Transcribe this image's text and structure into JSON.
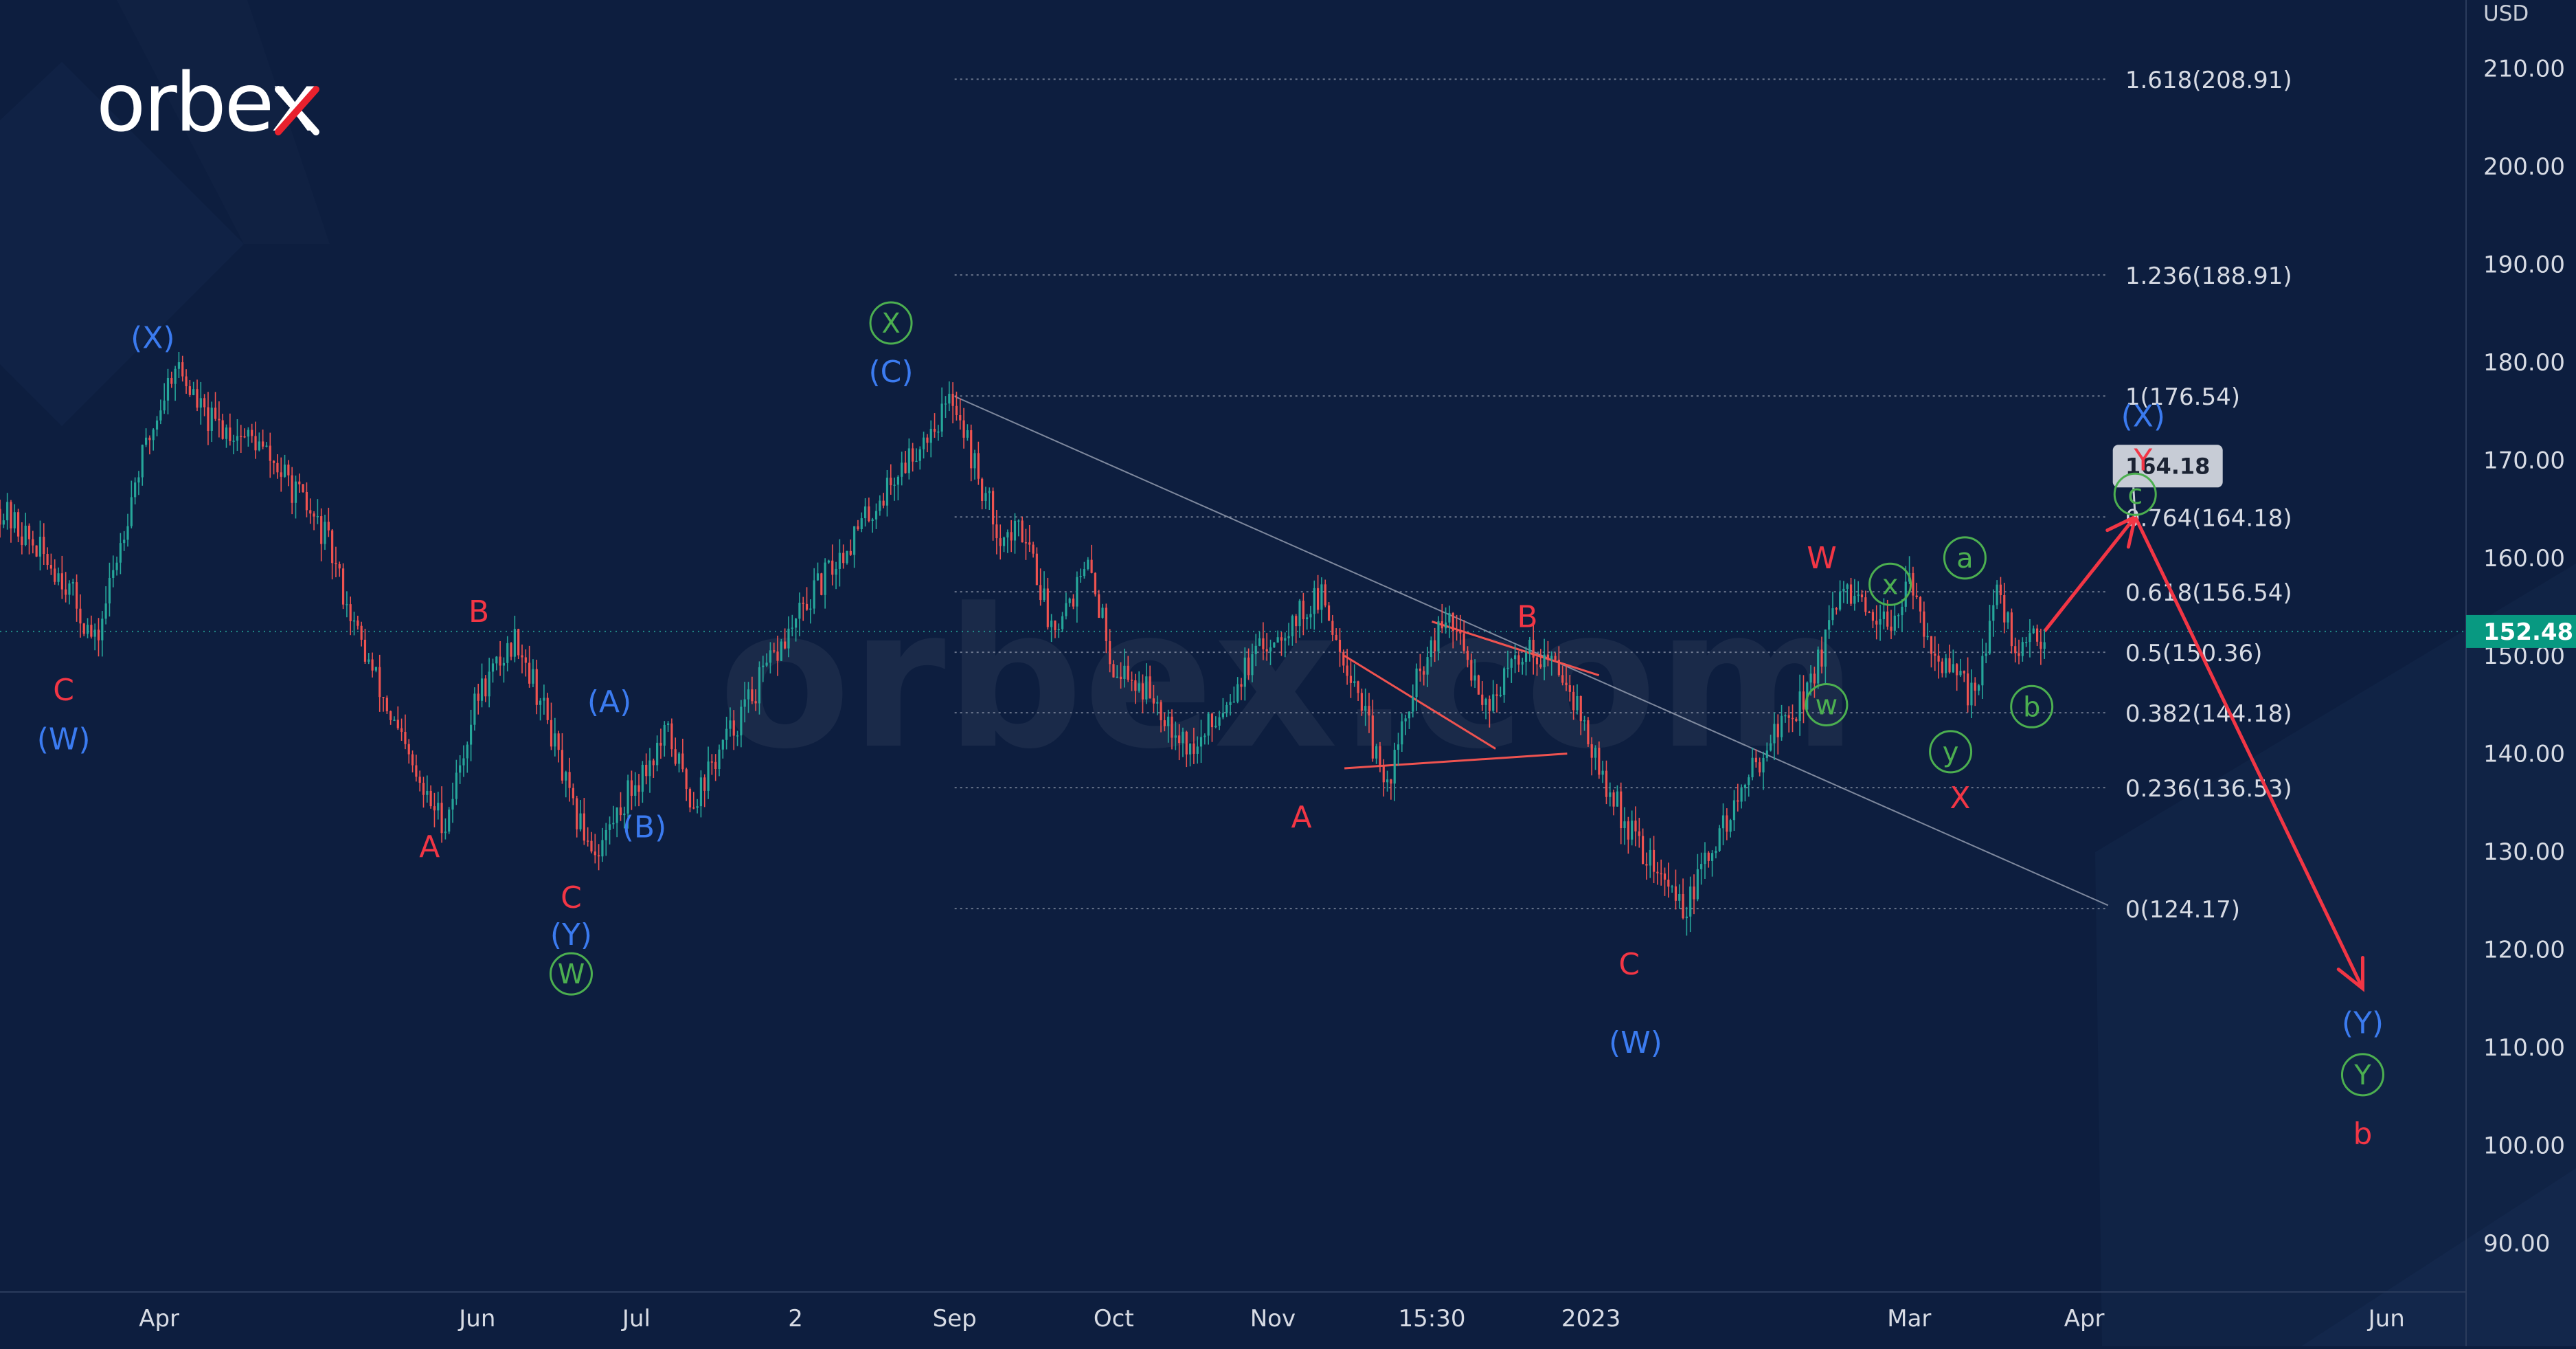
{
  "logo": {
    "text": "orbex",
    "watermark": "orbex.com"
  },
  "colors": {
    "background": "#0d1e3f",
    "up_candle": "#26a69a",
    "down_candle": "#ef5350",
    "red_label": "#f23645",
    "blue_label": "#3b7bf0",
    "green_label": "#4caf50",
    "fib_line": "#8a93a6",
    "last_price_bg": "#089981"
  },
  "chart_data": {
    "type": "candlestick",
    "instrument_unit": "USD",
    "y_axis": {
      "unit": "USD",
      "ticks": [
        90,
        100,
        110,
        120,
        130,
        140,
        150,
        160,
        170,
        180,
        190,
        200,
        210
      ],
      "tick_labels": [
        "90.00",
        "100.00",
        "110.00",
        "120.00",
        "130.00",
        "140.00",
        "150.00",
        "160.00",
        "170.00",
        "180.00",
        "190.00",
        "200.00",
        "210.00"
      ],
      "range": [
        85,
        217
      ]
    },
    "x_axis": {
      "tick_labels": [
        "Apr",
        "Jun",
        "Jul",
        "2",
        "Sep",
        "Oct",
        "Nov",
        "15:30",
        "2023",
        "Mar",
        "Apr",
        "Jun"
      ],
      "tick_positions": [
        0.5,
        2.5,
        3.5,
        4.5,
        5.5,
        6.5,
        7.5,
        8.5,
        9.5,
        11.5,
        12.6,
        14.5
      ],
      "range": [
        -0.5,
        15
      ]
    },
    "price_path": [
      [
        -0.5,
        165
      ],
      [
        -0.1,
        158
      ],
      [
        0.1,
        151
      ],
      [
        0.35,
        168
      ],
      [
        0.6,
        180
      ],
      [
        0.8,
        174
      ],
      [
        1.1,
        172
      ],
      [
        1.3,
        168
      ],
      [
        1.55,
        162
      ],
      [
        1.75,
        152
      ],
      [
        2.0,
        142
      ],
      [
        2.15,
        136
      ],
      [
        2.3,
        133
      ],
      [
        2.5,
        146
      ],
      [
        2.75,
        152
      ],
      [
        2.95,
        143
      ],
      [
        3.1,
        134
      ],
      [
        3.25,
        130
      ],
      [
        3.45,
        136
      ],
      [
        3.7,
        142
      ],
      [
        3.85,
        135
      ],
      [
        4.05,
        141
      ],
      [
        4.3,
        148
      ],
      [
        4.6,
        156
      ],
      [
        4.9,
        163
      ],
      [
        5.2,
        170
      ],
      [
        5.5,
        176.5
      ],
      [
        5.65,
        168
      ],
      [
        5.8,
        162
      ],
      [
        5.95,
        163
      ],
      [
        6.1,
        153
      ],
      [
        6.35,
        159
      ],
      [
        6.5,
        149
      ],
      [
        6.75,
        146
      ],
      [
        7.0,
        140
      ],
      [
        7.3,
        148
      ],
      [
        7.5,
        152
      ],
      [
        7.8,
        156
      ],
      [
        8.05,
        146
      ],
      [
        8.2,
        136
      ],
      [
        8.4,
        147
      ],
      [
        8.6,
        154
      ],
      [
        8.85,
        145
      ],
      [
        9.1,
        151
      ],
      [
        9.35,
        148
      ],
      [
        9.55,
        138
      ],
      [
        9.75,
        132
      ],
      [
        9.95,
        127
      ],
      [
        10.1,
        124.2
      ],
      [
        10.25,
        130
      ],
      [
        10.45,
        136
      ],
      [
        10.6,
        141
      ],
      [
        10.85,
        146
      ],
      [
        11.1,
        157
      ],
      [
        11.3,
        152
      ],
      [
        11.5,
        157
      ],
      [
        11.7,
        149
      ],
      [
        11.9,
        146
      ],
      [
        12.05,
        156
      ],
      [
        12.2,
        150
      ],
      [
        12.35,
        152.5
      ]
    ],
    "last_price": 152.48,
    "last_price_label": "152.48",
    "fib_levels": [
      {
        "ratio": 1.618,
        "price": 208.91,
        "label": "1.618(208.91)"
      },
      {
        "ratio": 1.236,
        "price": 188.91,
        "label": "1.236(188.91)"
      },
      {
        "ratio": 1,
        "price": 176.54,
        "label": "1(176.54)"
      },
      {
        "ratio": 0.764,
        "price": 164.18,
        "label": "0.764(164.18)"
      },
      {
        "ratio": 0.618,
        "price": 156.54,
        "label": "0.618(156.54)"
      },
      {
        "ratio": 0.5,
        "price": 150.36,
        "label": "0.5(150.36)"
      },
      {
        "ratio": 0.382,
        "price": 144.18,
        "label": "0.382(144.18)"
      },
      {
        "ratio": 0.236,
        "price": 136.53,
        "label": "0.236(136.53)"
      },
      {
        "ratio": 0,
        "price": 124.17,
        "label": "0(124.17)"
      }
    ],
    "fib_x_range": [
      5.5,
      12.75
    ],
    "target_callout": {
      "x": 12.65,
      "price": 164.18,
      "label": "164.18"
    },
    "trendline": {
      "from": [
        5.5,
        176.5
      ],
      "to": [
        12.75,
        124.5
      ]
    },
    "triangle": [
      {
        "from": [
          7.95,
          150
        ],
        "to": [
          8.9,
          140.5
        ]
      },
      {
        "from": [
          8.5,
          153.5
        ],
        "to": [
          9.55,
          148
        ]
      },
      {
        "from": [
          7.95,
          138.5
        ],
        "to": [
          9.35,
          140
        ]
      }
    ],
    "forecast_path": [
      [
        12.35,
        152.5
      ],
      [
        12.92,
        164.2
      ],
      [
        14.35,
        116
      ]
    ],
    "wave_labels": [
      {
        "text": "C",
        "x": -0.1,
        "price": 146.5,
        "color": "red",
        "style": "plain"
      },
      {
        "text": "(W)",
        "x": -0.1,
        "price": 141.5,
        "color": "blue",
        "style": "plain"
      },
      {
        "text": "(X)",
        "x": 0.46,
        "price": 182.5,
        "color": "blue",
        "style": "plain"
      },
      {
        "text": "A",
        "x": 2.2,
        "price": 130.5,
        "color": "red",
        "style": "plain"
      },
      {
        "text": "B",
        "x": 2.51,
        "price": 154.5,
        "color": "red",
        "style": "plain"
      },
      {
        "text": "C",
        "x": 3.09,
        "price": 125.3,
        "color": "red",
        "style": "plain"
      },
      {
        "text": "(Y)",
        "x": 3.09,
        "price": 121.5,
        "color": "blue",
        "style": "plain"
      },
      {
        "text": "W",
        "x": 3.09,
        "price": 117.5,
        "color": "green",
        "style": "circled"
      },
      {
        "text": "(A)",
        "x": 3.33,
        "price": 145.3,
        "color": "blue",
        "style": "plain"
      },
      {
        "text": "(B)",
        "x": 3.55,
        "price": 132.5,
        "color": "blue",
        "style": "plain"
      },
      {
        "text": "X",
        "x": 5.1,
        "price": 184,
        "color": "green",
        "style": "circled"
      },
      {
        "text": "(C)",
        "x": 5.1,
        "price": 179,
        "color": "blue",
        "style": "plain"
      },
      {
        "text": "A",
        "x": 7.68,
        "price": 133.5,
        "color": "red",
        "style": "plain"
      },
      {
        "text": "B",
        "x": 9.1,
        "price": 154,
        "color": "red",
        "style": "plain"
      },
      {
        "text": "C",
        "x": 9.74,
        "price": 118.5,
        "color": "red",
        "style": "plain"
      },
      {
        "text": "(W)",
        "x": 9.78,
        "price": 110.5,
        "color": "blue",
        "style": "plain"
      },
      {
        "text": "W",
        "x": 10.95,
        "price": 160,
        "color": "red",
        "style": "plain"
      },
      {
        "text": "x",
        "x": 11.38,
        "price": 157.3,
        "color": "green",
        "style": "circled"
      },
      {
        "text": "w",
        "x": 10.98,
        "price": 145,
        "color": "green",
        "style": "circled"
      },
      {
        "text": "y",
        "x": 11.76,
        "price": 140.2,
        "color": "green",
        "style": "circled"
      },
      {
        "text": "X",
        "x": 11.82,
        "price": 135.5,
        "color": "red",
        "style": "plain"
      },
      {
        "text": "a",
        "x": 11.85,
        "price": 160,
        "color": "green",
        "style": "circled"
      },
      {
        "text": "b",
        "x": 12.27,
        "price": 144.8,
        "color": "green",
        "style": "circled"
      },
      {
        "text": "(X)",
        "x": 12.97,
        "price": 174.5,
        "color": "blue",
        "style": "plain"
      },
      {
        "text": "Y",
        "x": 12.97,
        "price": 170,
        "color": "red",
        "style": "plain"
      },
      {
        "text": "c",
        "x": 12.92,
        "price": 166.5,
        "color": "green",
        "style": "circled"
      },
      {
        "text": "(Y)",
        "x": 14.35,
        "price": 112.5,
        "color": "blue",
        "style": "plain"
      },
      {
        "text": "Y",
        "x": 14.35,
        "price": 107.2,
        "color": "green",
        "style": "circled"
      },
      {
        "text": "b",
        "x": 14.35,
        "price": 101.2,
        "color": "red",
        "style": "plain"
      }
    ]
  }
}
